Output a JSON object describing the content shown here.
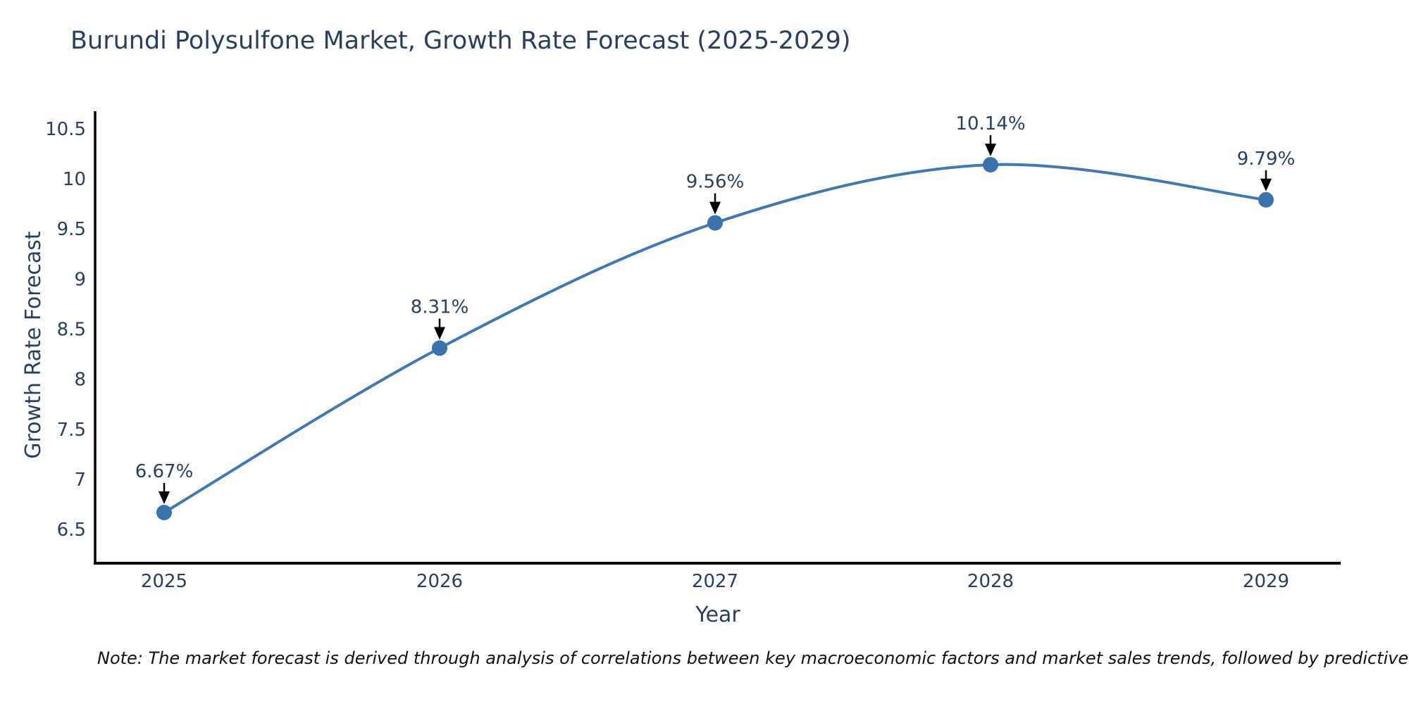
{
  "chart": {
    "title": "Burundi Polysulfone Market, Growth Rate Forecast (2025-2029)",
    "xlabel": "Year",
    "ylabel": "Growth Rate Forecast"
  },
  "note": {
    "text": "Note: The market forecast is derived through analysis of correlations between key macroeconomic factors and market sales trends, followed by predictive modeling to project future sal"
  },
  "chart_data": {
    "type": "line",
    "title": "Burundi Polysulfone Market, Growth Rate Forecast (2025-2029)",
    "xlabel": "Year",
    "ylabel": "Growth Rate Forecast",
    "x": [
      2025,
      2026,
      2027,
      2028,
      2029
    ],
    "series": [
      {
        "name": "Growth Rate Forecast",
        "values": [
          6.67,
          8.31,
          9.56,
          10.14,
          9.79
        ]
      }
    ],
    "point_labels": [
      "6.67%",
      "8.31%",
      "9.56%",
      "10.14%",
      "9.79%"
    ],
    "xticks": [
      "2025",
      "2026",
      "2027",
      "2028",
      "2029"
    ],
    "yticks": [
      6.5,
      7,
      7.5,
      8,
      8.5,
      9,
      9.5,
      10,
      10.5
    ],
    "ylim": [
      6.15,
      10.66
    ],
    "line_shape": "spline",
    "grid": false,
    "legend": "none",
    "colors": {
      "line": "#3f78b2",
      "marker": "#3a72ad",
      "arrow": "#000000",
      "text": "#2a3f5f",
      "axis": "#000000"
    }
  }
}
